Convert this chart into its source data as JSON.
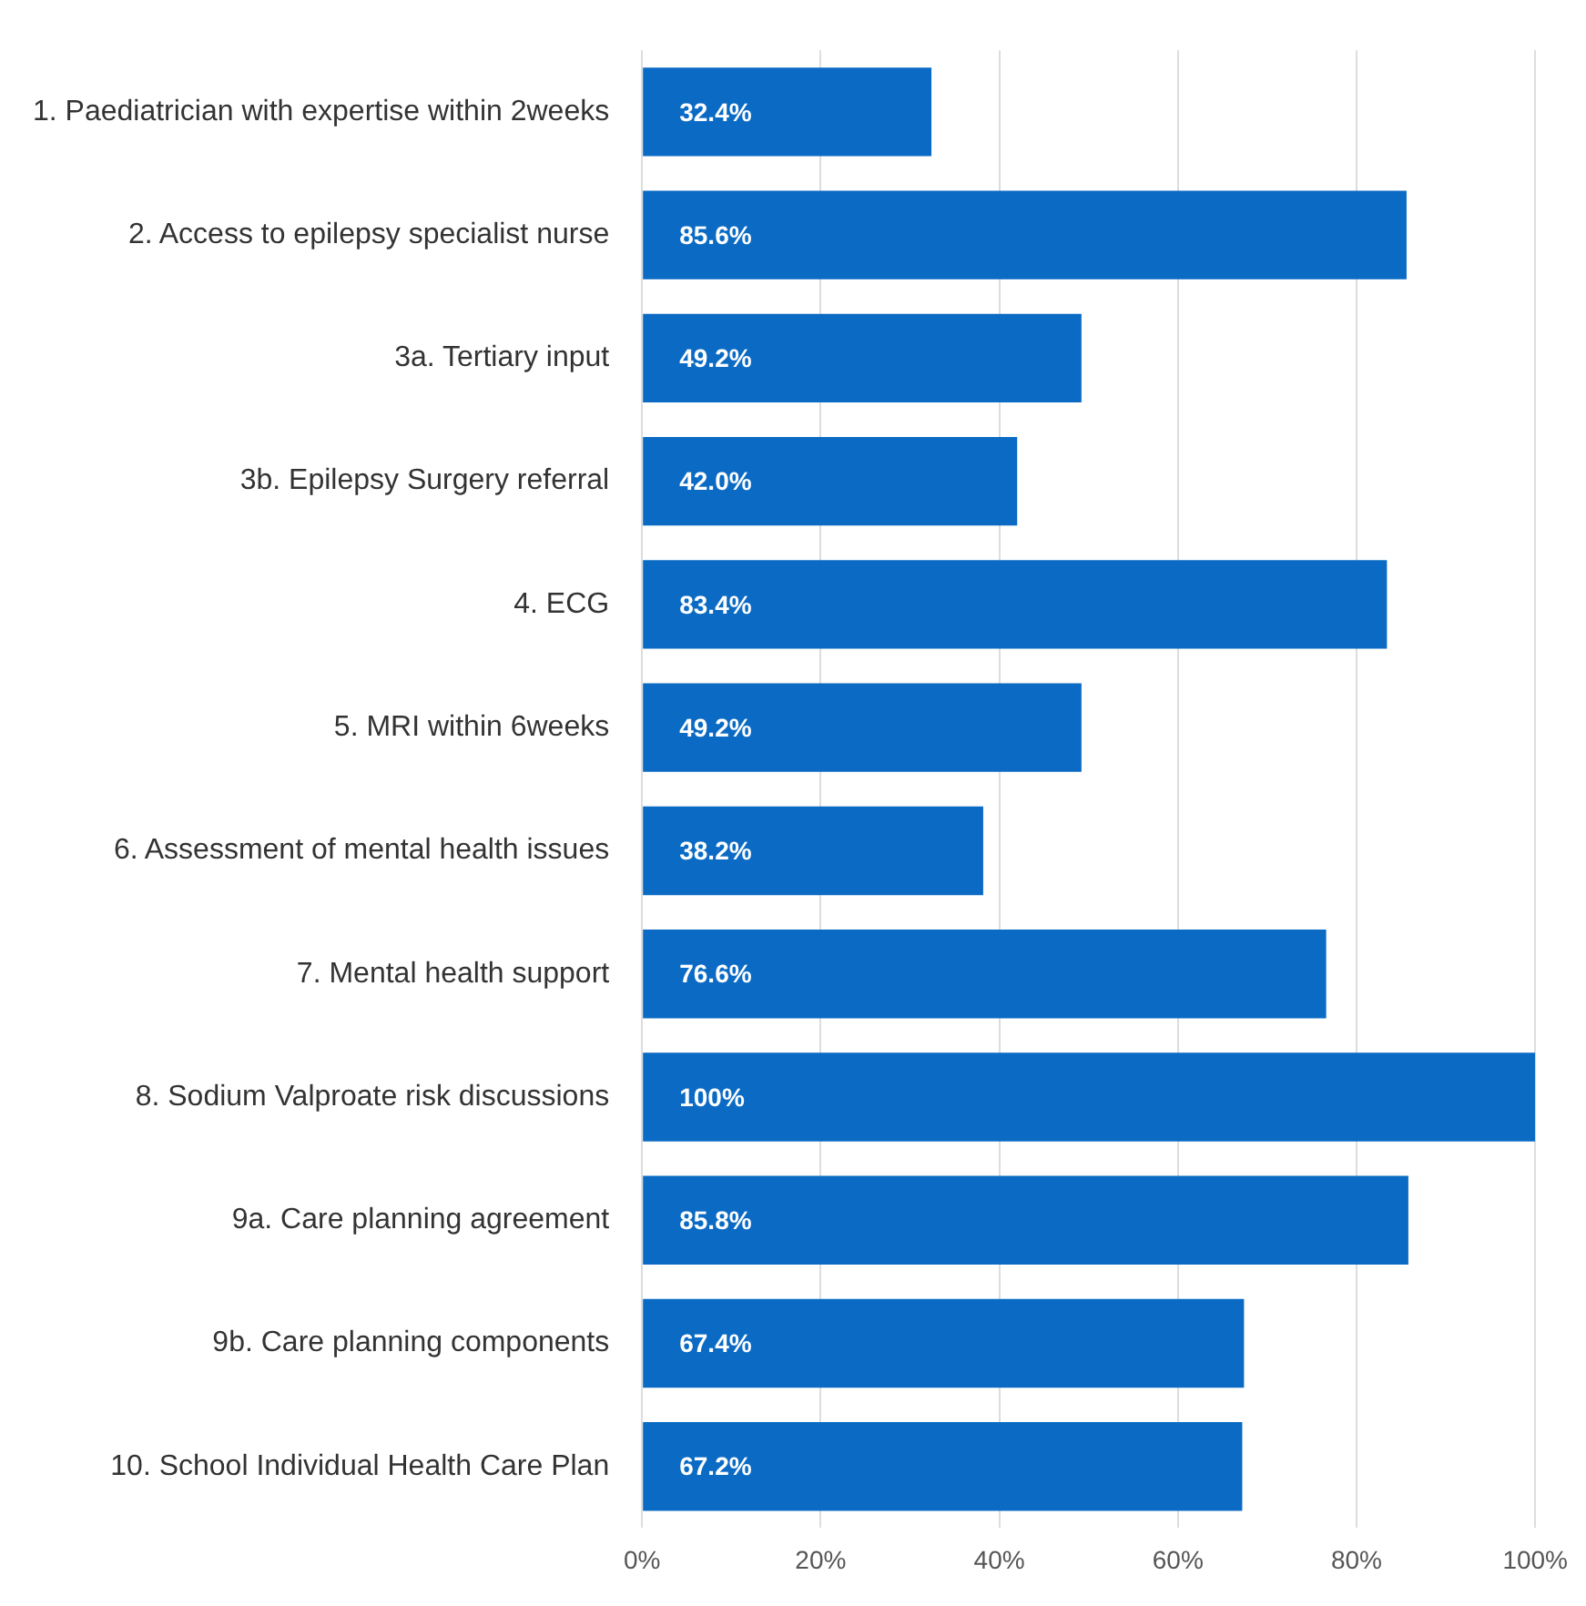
{
  "chart_data": {
    "type": "bar",
    "orientation": "horizontal",
    "categories": [
      "1. Paediatrician with expertise within 2weeks",
      "2. Access to epilepsy specialist nurse",
      "3a. Tertiary input",
      "3b. Epilepsy Surgery referral",
      "4. ECG",
      "5. MRI within 6weeks",
      "6. Assessment of mental health issues",
      "7. Mental health support",
      "8. Sodium Valproate risk discussions",
      "9a. Care planning agreement",
      "9b. Care planning components",
      "10. School Individual Health Care Plan"
    ],
    "values": [
      32.4,
      85.6,
      49.2,
      42.0,
      83.4,
      49.2,
      38.2,
      76.6,
      100,
      85.8,
      67.4,
      67.2
    ],
    "value_labels": [
      "32.4%",
      "85.6%",
      "49.2%",
      "42.0%",
      "83.4%",
      "49.2%",
      "38.2%",
      "76.6%",
      "100%",
      "85.8%",
      "67.4%",
      "67.2%"
    ],
    "color": "#0b6bc4",
    "xlim": [
      0,
      100
    ],
    "xticks": [
      {
        "value": 0,
        "label": "0%"
      },
      {
        "value": 20,
        "label": "20%"
      },
      {
        "value": 40,
        "label": "40%"
      },
      {
        "value": 60,
        "label": "60%"
      },
      {
        "value": 80,
        "label": "80%"
      },
      {
        "value": 100,
        "label": "100%"
      }
    ],
    "grid": "x",
    "legend": false
  }
}
